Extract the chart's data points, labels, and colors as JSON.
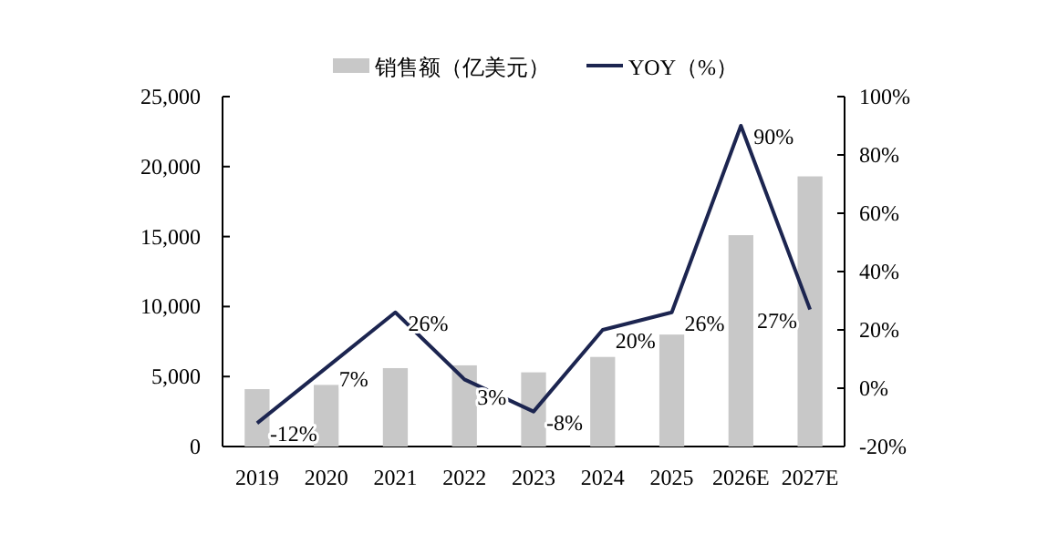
{
  "chart_data": {
    "type": "bar",
    "categories": [
      "2019",
      "2020",
      "2021",
      "2022",
      "2023",
      "2024",
      "2025",
      "2026E",
      "2027E"
    ],
    "series": [
      {
        "name": "销售额（亿美元）",
        "color": "#c8c8c8",
        "values": [
          4100,
          4400,
          5600,
          5800,
          5300,
          6400,
          8000,
          15100,
          19300
        ]
      },
      {
        "name": "YOY（%）",
        "type": "line",
        "axis": "y2",
        "color": "#1c2550",
        "values": [
          -12,
          7,
          26,
          3,
          -8,
          20,
          26,
          90,
          27
        ],
        "value_labels": [
          "-12%",
          "7%",
          "26%",
          "3%",
          "-8%",
          "20%",
          "26%",
          "90%",
          "27%"
        ]
      }
    ],
    "ylim": [
      0,
      25000
    ],
    "yticks": [
      {
        "value": 0,
        "label": "0"
      },
      {
        "value": 5000,
        "label": "5,000"
      },
      {
        "value": 10000,
        "label": "10,000"
      },
      {
        "value": 15000,
        "label": "15,000"
      },
      {
        "value": 20000,
        "label": "20,000"
      },
      {
        "value": 25000,
        "label": "25,000"
      }
    ],
    "y2lim": [
      -20,
      100
    ],
    "y2ticks": [
      {
        "value": -20,
        "label": "-20%"
      },
      {
        "value": 0,
        "label": "0%"
      },
      {
        "value": 20,
        "label": "20%"
      },
      {
        "value": 40,
        "label": "40%"
      },
      {
        "value": 60,
        "label": "60%"
      },
      {
        "value": 80,
        "label": "80%"
      },
      {
        "value": 100,
        "label": "100%"
      }
    ],
    "legend": "top"
  }
}
